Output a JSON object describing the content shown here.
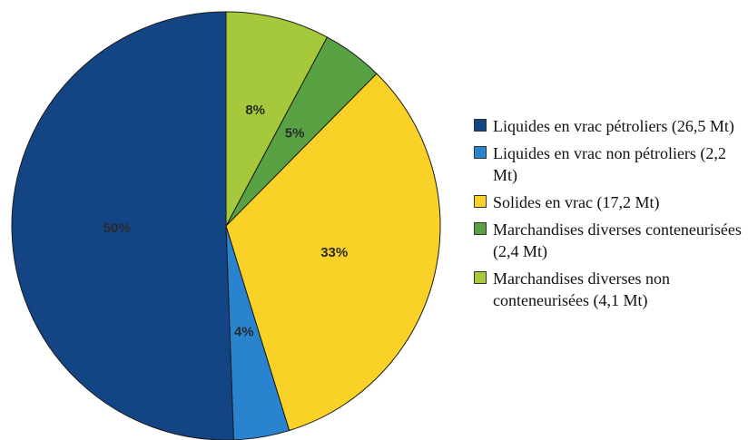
{
  "chart_data": {
    "type": "pie",
    "title": "",
    "slices": [
      {
        "label": "Liquides en vrac pétroliers (26,5 Mt)",
        "value": 26.5,
        "percent_label": "50%",
        "color": "#134584"
      },
      {
        "label": "Liquides en vrac non pétroliers (2,2 Mt)",
        "value": 2.2,
        "percent_label": "4%",
        "color": "#2A83CF"
      },
      {
        "label": "Solides en vrac (17,2 Mt)",
        "value": 17.2,
        "percent_label": "33%",
        "color": "#FAD127"
      },
      {
        "label": "Marchandises diverses conteneurisées (2,4 Mt)",
        "value": 2.4,
        "percent_label": "5%",
        "color": "#58A243"
      },
      {
        "label": "Marchandises diverses non conteneurisées (4,1 Mt)",
        "value": 4.1,
        "percent_label": "8%",
        "color": "#A6C93B"
      }
    ],
    "legend_position": "right"
  }
}
